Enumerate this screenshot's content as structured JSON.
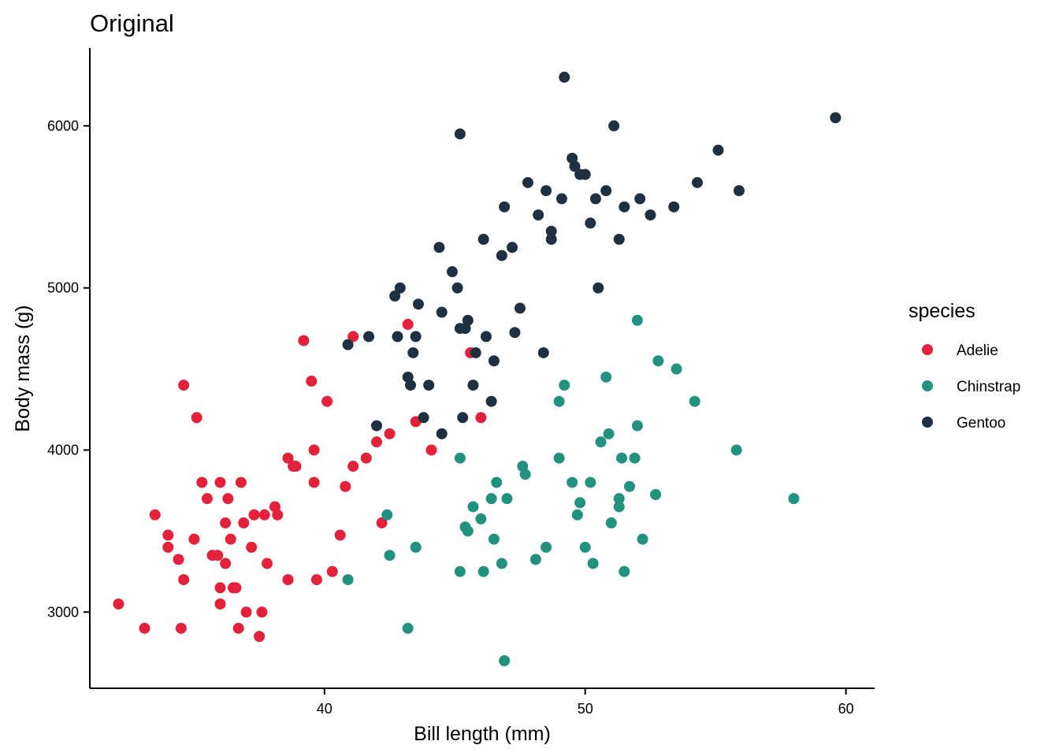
{
  "chart_data": {
    "type": "scatter",
    "title": "Original",
    "xlabel": "Bill length (mm)",
    "ylabel": "Body mass (g)",
    "xlim": [
      31,
      61.1
    ],
    "ylim": [
      2530,
      6480
    ],
    "xticks": [
      40,
      50,
      60
    ],
    "yticks": [
      3000,
      4000,
      5000,
      6000
    ],
    "grid": false,
    "legend": {
      "title": "species",
      "position": "right"
    },
    "series": [
      {
        "name": "Adelie",
        "color": "#E3213A",
        "points": [
          [
            32.1,
            3050
          ],
          [
            33.1,
            2900
          ],
          [
            33.5,
            3600
          ],
          [
            34.0,
            3475
          ],
          [
            34.0,
            3400
          ],
          [
            34.4,
            3325
          ],
          [
            34.5,
            2900
          ],
          [
            34.6,
            3200
          ],
          [
            34.6,
            4400
          ],
          [
            35.0,
            3450
          ],
          [
            35.1,
            4200
          ],
          [
            35.3,
            3800
          ],
          [
            35.5,
            3700
          ],
          [
            35.7,
            3350
          ],
          [
            35.9,
            3350
          ],
          [
            36.0,
            3050
          ],
          [
            36.0,
            3150
          ],
          [
            36.0,
            3800
          ],
          [
            36.2,
            3550
          ],
          [
            36.2,
            3300
          ],
          [
            36.3,
            3700
          ],
          [
            36.4,
            3450
          ],
          [
            36.5,
            3150
          ],
          [
            36.6,
            3150
          ],
          [
            36.7,
            2900
          ],
          [
            36.8,
            3800
          ],
          [
            36.9,
            3550
          ],
          [
            37.0,
            3000
          ],
          [
            37.2,
            3400
          ],
          [
            37.3,
            3600
          ],
          [
            37.5,
            2850
          ],
          [
            37.6,
            3000
          ],
          [
            37.8,
            3300
          ],
          [
            38.1,
            3650
          ],
          [
            38.2,
            3600
          ],
          [
            38.6,
            3200
          ],
          [
            38.9,
            3900
          ],
          [
            39.2,
            4675
          ],
          [
            39.5,
            4425
          ],
          [
            39.6,
            3800
          ],
          [
            39.7,
            3200
          ],
          [
            40.1,
            4300
          ],
          [
            40.6,
            3475
          ],
          [
            40.8,
            3775
          ],
          [
            41.1,
            3900
          ],
          [
            41.6,
            3950
          ],
          [
            42.0,
            4050
          ],
          [
            42.2,
            3550
          ],
          [
            42.5,
            4100
          ],
          [
            43.2,
            4775
          ],
          [
            43.5,
            4175
          ],
          [
            44.1,
            4000
          ],
          [
            45.6,
            4600
          ],
          [
            46.0,
            4200
          ],
          [
            39.6,
            4000
          ],
          [
            38.8,
            3900
          ],
          [
            41.1,
            4700
          ],
          [
            40.3,
            3250
          ],
          [
            38.6,
            3950
          ],
          [
            37.7,
            3600
          ]
        ]
      },
      {
        "name": "Chinstrap",
        "color": "#22917E",
        "points": [
          [
            40.9,
            3200
          ],
          [
            42.4,
            3600
          ],
          [
            42.5,
            3350
          ],
          [
            43.2,
            2900
          ],
          [
            43.5,
            3400
          ],
          [
            45.2,
            3250
          ],
          [
            45.2,
            3950
          ],
          [
            45.4,
            3525
          ],
          [
            45.5,
            3500
          ],
          [
            45.7,
            3650
          ],
          [
            46.0,
            3575
          ],
          [
            46.1,
            3250
          ],
          [
            46.4,
            3700
          ],
          [
            46.6,
            3800
          ],
          [
            46.8,
            3300
          ],
          [
            46.9,
            2700
          ],
          [
            47.0,
            3700
          ],
          [
            47.6,
            3900
          ],
          [
            48.1,
            3325
          ],
          [
            48.5,
            3400
          ],
          [
            49.0,
            3950
          ],
          [
            49.0,
            4300
          ],
          [
            49.2,
            4400
          ],
          [
            49.5,
            3800
          ],
          [
            49.7,
            3600
          ],
          [
            50.0,
            3400
          ],
          [
            50.2,
            3800
          ],
          [
            50.3,
            3300
          ],
          [
            50.6,
            4050
          ],
          [
            50.8,
            4450
          ],
          [
            51.0,
            3550
          ],
          [
            51.3,
            3700
          ],
          [
            51.4,
            3950
          ],
          [
            51.5,
            3250
          ],
          [
            51.7,
            3775
          ],
          [
            52.0,
            4800
          ],
          [
            52.2,
            3450
          ],
          [
            52.7,
            3725
          ],
          [
            52.8,
            4550
          ],
          [
            53.5,
            4500
          ],
          [
            54.2,
            4300
          ],
          [
            55.8,
            4000
          ],
          [
            58.0,
            3700
          ],
          [
            46.5,
            3450
          ],
          [
            49.8,
            3675
          ],
          [
            50.9,
            4100
          ],
          [
            52.0,
            4150
          ],
          [
            51.9,
            3950
          ],
          [
            47.7,
            3850
          ],
          [
            51.3,
            3650
          ]
        ]
      },
      {
        "name": "Gentoo",
        "color": "#1F3140",
        "points": [
          [
            40.9,
            4650
          ],
          [
            41.7,
            4700
          ],
          [
            42.0,
            4150
          ],
          [
            42.7,
            4950
          ],
          [
            42.8,
            4700
          ],
          [
            42.9,
            5000
          ],
          [
            43.2,
            4450
          ],
          [
            43.3,
            4400
          ],
          [
            43.4,
            4600
          ],
          [
            43.5,
            4700
          ],
          [
            43.6,
            4900
          ],
          [
            44.0,
            4400
          ],
          [
            44.4,
            5250
          ],
          [
            44.5,
            4850
          ],
          [
            44.9,
            5100
          ],
          [
            45.1,
            5000
          ],
          [
            45.2,
            4750
          ],
          [
            45.2,
            5950
          ],
          [
            45.3,
            4200
          ],
          [
            45.4,
            4750
          ],
          [
            45.5,
            4800
          ],
          [
            45.7,
            4400
          ],
          [
            46.1,
            5300
          ],
          [
            46.2,
            4700
          ],
          [
            46.5,
            4550
          ],
          [
            46.8,
            5200
          ],
          [
            47.2,
            5250
          ],
          [
            47.5,
            4875
          ],
          [
            47.8,
            5650
          ],
          [
            48.2,
            5450
          ],
          [
            48.5,
            5600
          ],
          [
            48.7,
            5300
          ],
          [
            49.1,
            5550
          ],
          [
            49.2,
            6300
          ],
          [
            49.5,
            5800
          ],
          [
            49.8,
            5700
          ],
          [
            50.0,
            5700
          ],
          [
            50.4,
            5550
          ],
          [
            50.5,
            5000
          ],
          [
            50.8,
            5600
          ],
          [
            51.1,
            6000
          ],
          [
            51.3,
            5300
          ],
          [
            51.5,
            5500
          ],
          [
            52.1,
            5550
          ],
          [
            52.5,
            5450
          ],
          [
            53.4,
            5500
          ],
          [
            54.3,
            5650
          ],
          [
            55.1,
            5850
          ],
          [
            55.9,
            5600
          ],
          [
            59.6,
            6050
          ],
          [
            46.4,
            4300
          ],
          [
            47.3,
            4725
          ],
          [
            48.7,
            5350
          ],
          [
            49.6,
            5750
          ],
          [
            50.2,
            5400
          ],
          [
            45.8,
            4600
          ],
          [
            46.9,
            5500
          ],
          [
            48.4,
            4600
          ],
          [
            44.5,
            4100
          ],
          [
            43.8,
            4200
          ]
        ]
      }
    ]
  }
}
